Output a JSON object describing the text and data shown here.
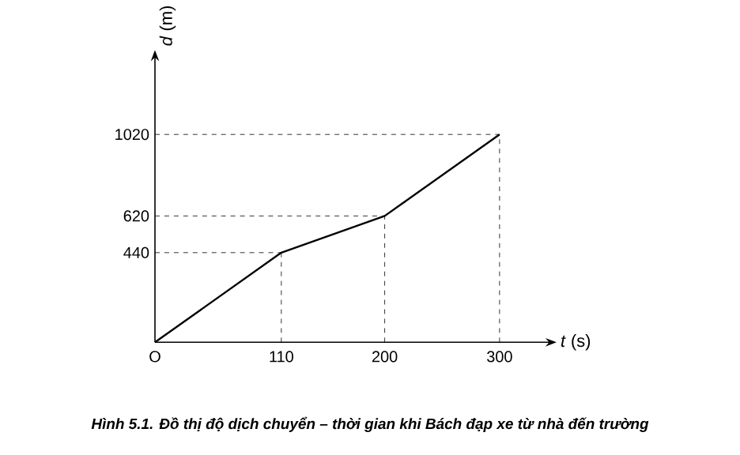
{
  "chart_data": {
    "type": "line",
    "title": "**Hình 5.1.** Đồ thị độ dịch chuyển – thời gian khi Bách đạp xe từ nhà đến trường",
    "xlabel": "*t* (s)",
    "ylabel": "*d* (m)",
    "x": [
      0,
      110,
      200,
      300
    ],
    "series": [
      {
        "color": "#000000",
        "values": [
          0,
          440,
          620,
          1020
        ]
      }
    ],
    "xlim": [
      0,
      340
    ],
    "ylim": [
      0,
      1380
    ],
    "xticks": [
      {
        "value": 0,
        "label": "O"
      },
      110,
      200,
      300
    ],
    "yticks": [
      440,
      620,
      1020
    ],
    "marker": "none",
    "line_style": "solid",
    "ref_lines": [
      {
        "axis": "y",
        "value": 440,
        "line_style": "dashed"
      },
      {
        "axis": "y",
        "value": 620,
        "line_style": "dashed"
      },
      {
        "axis": "y",
        "value": 1020,
        "line_style": "dashed"
      },
      {
        "axis": "x",
        "value": 110,
        "line_style": "dashed"
      },
      {
        "axis": "x",
        "value": 200,
        "line_style": "dashed"
      },
      {
        "axis": "x",
        "value": 300,
        "line_style": "dashed"
      }
    ]
  }
}
